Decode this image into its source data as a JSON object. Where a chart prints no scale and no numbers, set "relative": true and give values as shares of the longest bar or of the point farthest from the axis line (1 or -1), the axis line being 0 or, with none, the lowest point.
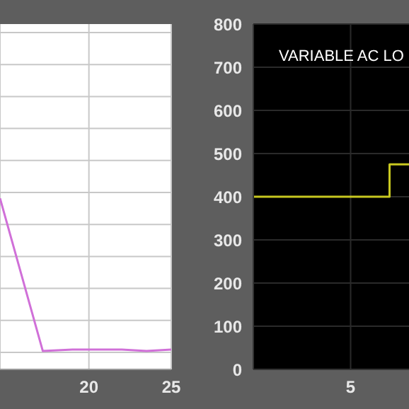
{
  "chart_data": [
    {
      "type": "line",
      "relative": true,
      "x": [
        14.6,
        17.2,
        19,
        22,
        23.5,
        25
      ],
      "values": [
        1,
        0,
        0.01,
        0.01,
        0,
        0.01
      ],
      "color": "#d070d8",
      "xlim": [
        14.6,
        25
      ],
      "xticks": [
        20,
        25
      ],
      "tick_labels": "x",
      "grid": true
    },
    {
      "type": "step",
      "title": "VARIABLE AC LO",
      "categories": [
        null,
        null,
        null,
        null,
        null,
        "5",
        null,
        null,
        null
      ],
      "values": [
        400,
        400,
        400,
        400,
        400,
        400,
        400,
        475,
        475
      ],
      "color": "#c8c820",
      "ylim": [
        0,
        800
      ],
      "yticks": [
        0,
        100,
        200,
        300,
        400,
        500,
        600,
        700,
        800
      ],
      "grid": true
    }
  ]
}
